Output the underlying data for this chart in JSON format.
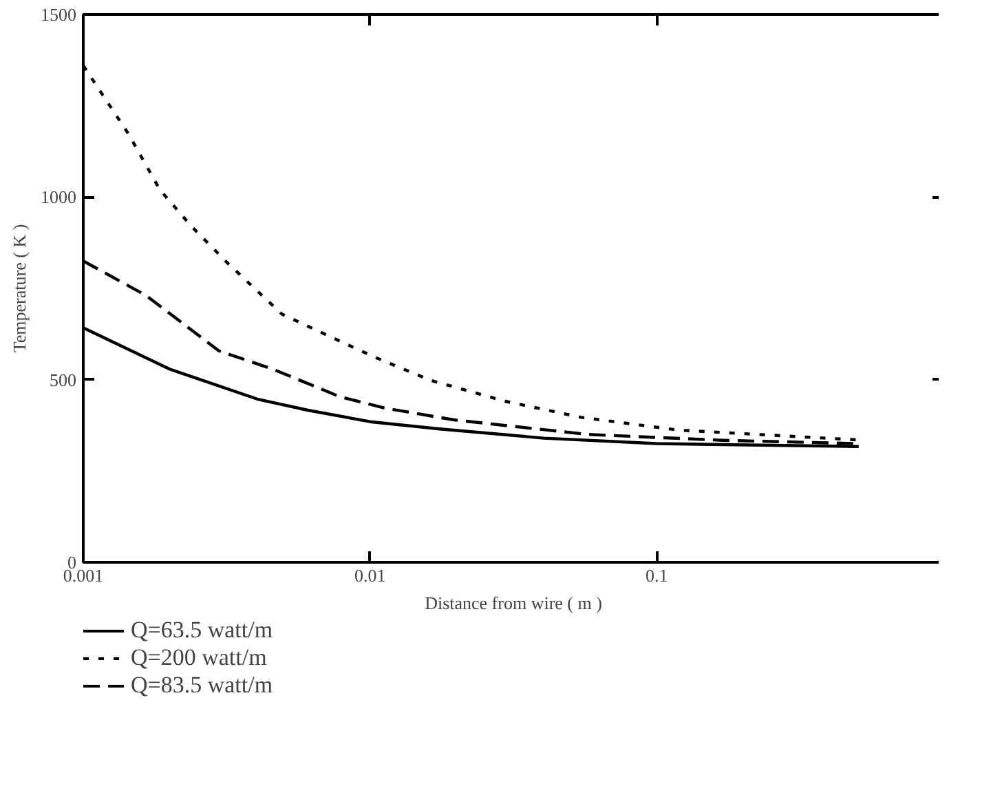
{
  "chart_data": {
    "type": "line",
    "xlabel": "Distance from wire ( m )",
    "ylabel": "Temperature ( K )",
    "log": "x",
    "grid": false,
    "legend": "bottom left",
    "xlim": [
      0.001,
      1
    ],
    "xticks": [
      0.001,
      0.01,
      0.1
    ],
    "ylim": [
      0,
      1500
    ],
    "yticks": [
      0,
      500,
      1000,
      1500
    ],
    "series": [
      {
        "name": "Q=63.5 watt/m",
        "color": "#000000",
        "line_style": "solid",
        "x": [
          0.001,
          0.002,
          0.00404,
          0.00611,
          0.01,
          0.0175,
          0.0403,
          0.1,
          0.506
        ],
        "values": [
          642,
          529,
          447,
          416,
          385,
          365,
          340,
          325,
          317
        ]
      },
      {
        "name": "Q=200 watt/m",
        "color": "#000000",
        "line_style": "dotted",
        "x": [
          0.001,
          0.00144,
          0.00185,
          0.00239,
          0.00319,
          0.00492,
          0.0073,
          0.0105,
          0.0163,
          0.0296,
          0.0544,
          0.119,
          0.506
        ],
        "values": [
          1360,
          1172,
          1020,
          919,
          819,
          680,
          617,
          560,
          498,
          441,
          397,
          362,
          335
        ]
      },
      {
        "name": "Q=83.5 watt/m",
        "color": "#000000",
        "line_style": "dashed",
        "x": [
          0.001,
          0.00166,
          0.00297,
          0.00458,
          0.00787,
          0.0113,
          0.0196,
          0.0577,
          0.17,
          0.506
        ],
        "values": [
          825,
          730,
          579,
          529,
          453,
          422,
          390,
          350,
          334,
          325
        ]
      }
    ]
  }
}
